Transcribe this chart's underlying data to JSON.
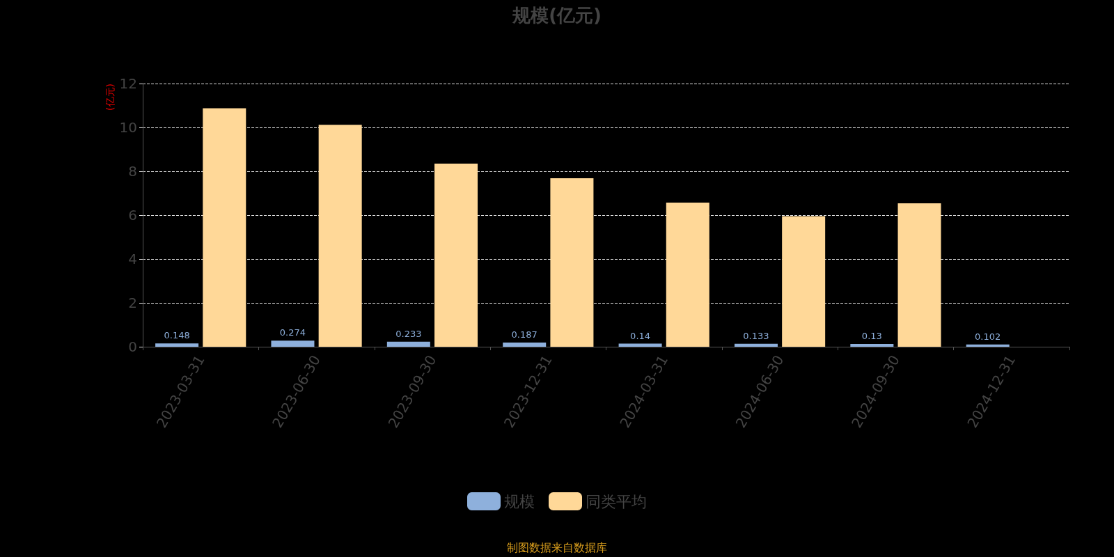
{
  "chart_data": {
    "type": "bar",
    "title": "规模(亿元)",
    "ylabel": "(亿元)",
    "categories": [
      "2023-03-31",
      "2023-06-30",
      "2023-09-30",
      "2023-12-31",
      "2024-03-31",
      "2024-06-30",
      "2024-09-30",
      "2024-12-31"
    ],
    "series": [
      {
        "name": "规模",
        "color": "#8eb0dc",
        "values": [
          0.148,
          0.274,
          0.233,
          0.187,
          0.14,
          0.133,
          0.13,
          0.102
        ],
        "data_labels": true
      },
      {
        "name": "同类平均",
        "color": "#ffd898",
        "values": [
          10.87,
          10.12,
          8.35,
          7.68,
          6.57,
          5.95,
          6.54,
          null
        ]
      }
    ],
    "ylim": [
      0,
      12
    ],
    "yticks": [
      0,
      2,
      4,
      6,
      8,
      10,
      12
    ],
    "grid": "y",
    "legend": "bottom",
    "annotations": [
      "制图数据来自数据库"
    ]
  }
}
